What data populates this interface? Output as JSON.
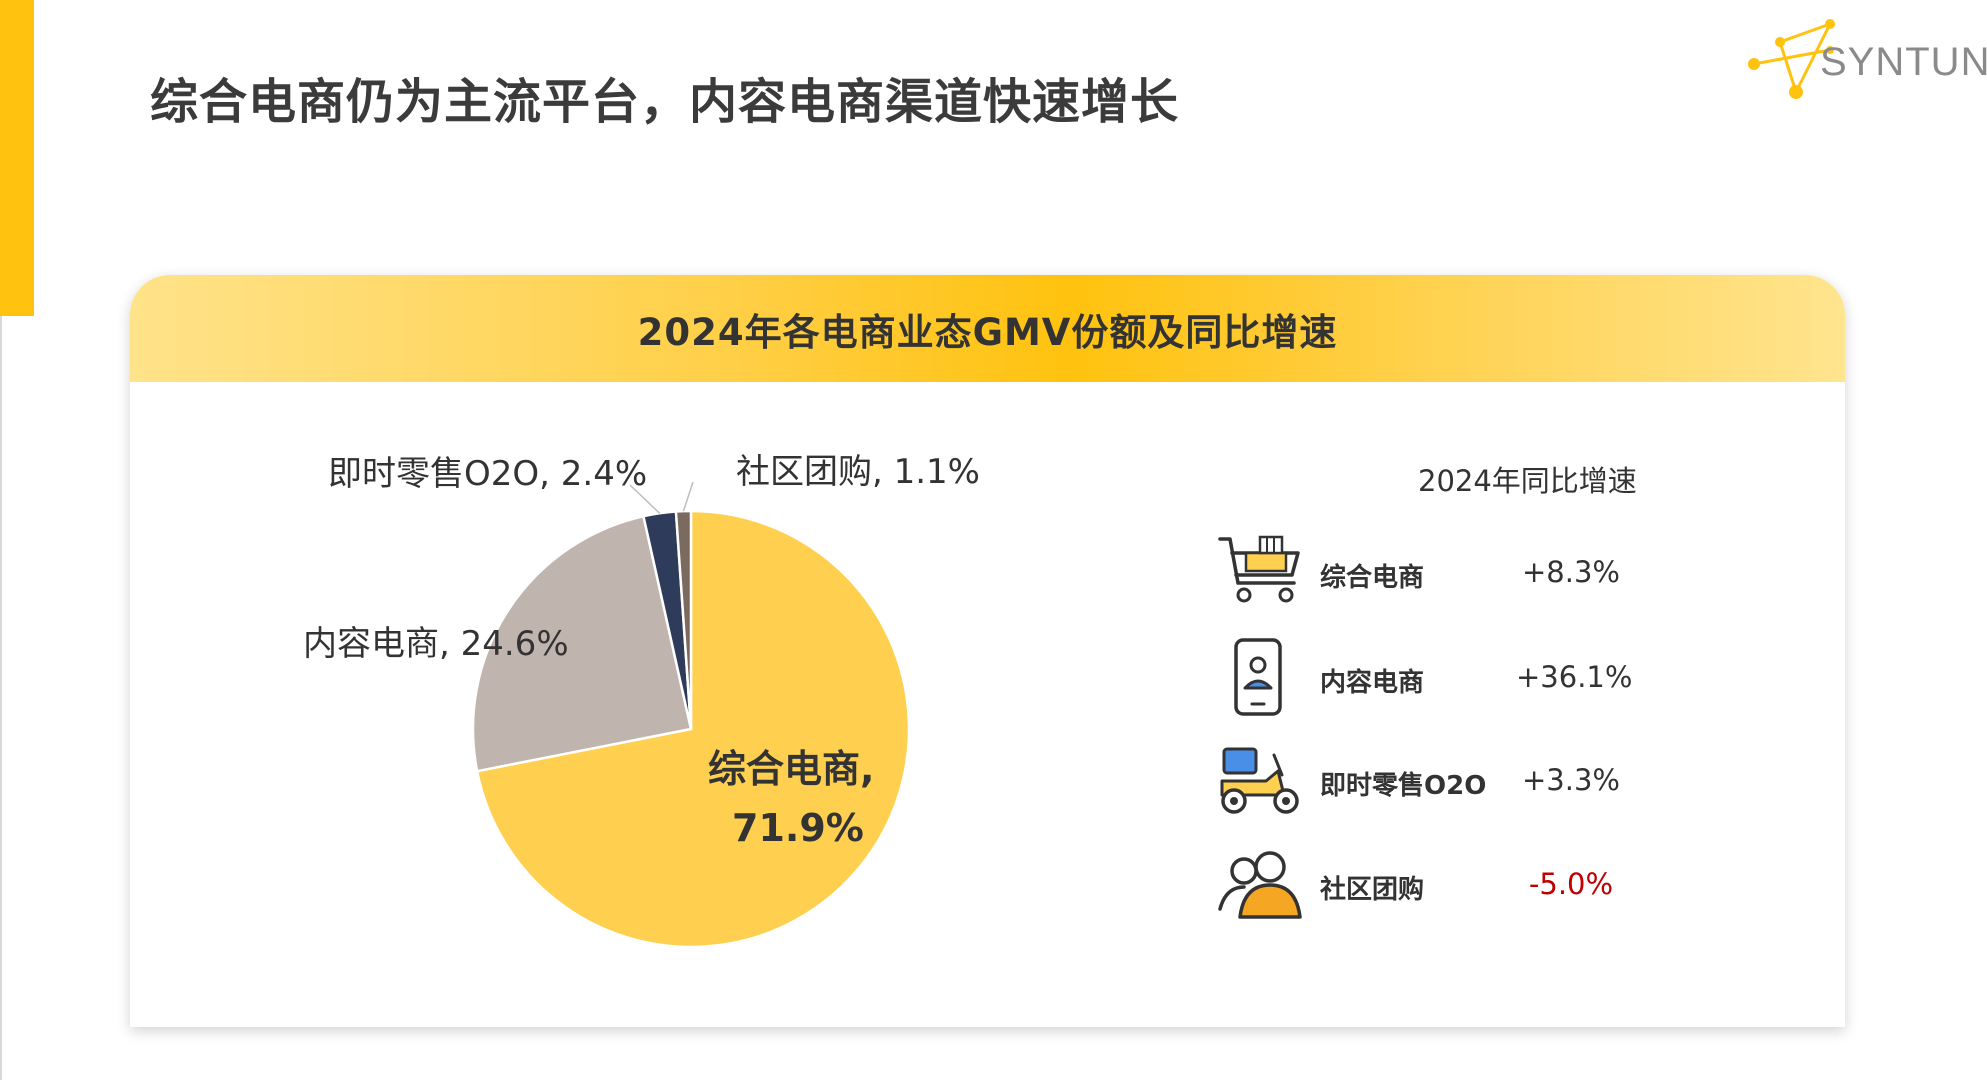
{
  "page": {
    "title": "综合电商仍为主流平台，内容电商渠道快速增长",
    "logo_text": "SYNTUN",
    "accent_color": "#FFC20E"
  },
  "card": {
    "title": "2024年各电商业态GMV份额及同比增速"
  },
  "chart_data": [
    {
      "type": "pie",
      "title": "2024年各电商业态GMV份额及同比增速",
      "unit": "%",
      "slices": [
        {
          "name": "综合电商",
          "value": 71.9,
          "color": "#FFD04F",
          "label": "综合电商,",
          "value_label": "71.9%"
        },
        {
          "name": "内容电商",
          "value": 24.6,
          "color": "#C0B5AE",
          "label": "内容电商, 24.6%"
        },
        {
          "name": "即时零售O2O",
          "value": 2.4,
          "color": "#2E3B5A",
          "label": "即时零售O2O, 2.4%"
        },
        {
          "name": "社区团购",
          "value": 1.1,
          "color": "#7A6A60",
          "label": "社区团购, 1.1%"
        }
      ]
    },
    {
      "type": "table",
      "title": "2024年同比增速",
      "rows": [
        {
          "category": "综合电商",
          "value": 8.3,
          "display": "+8.3%",
          "icon": "shopping-cart-icon"
        },
        {
          "category": "内容电商",
          "value": 36.1,
          "display": "+36.1%",
          "icon": "mobile-user-icon"
        },
        {
          "category": "即时零售O2O",
          "value": 3.3,
          "display": "+3.3%",
          "icon": "delivery-scooter-icon"
        },
        {
          "category": "社区团购",
          "value": -5.0,
          "display": "-5.0%",
          "icon": "group-users-icon",
          "color": "#C00000"
        }
      ]
    }
  ]
}
